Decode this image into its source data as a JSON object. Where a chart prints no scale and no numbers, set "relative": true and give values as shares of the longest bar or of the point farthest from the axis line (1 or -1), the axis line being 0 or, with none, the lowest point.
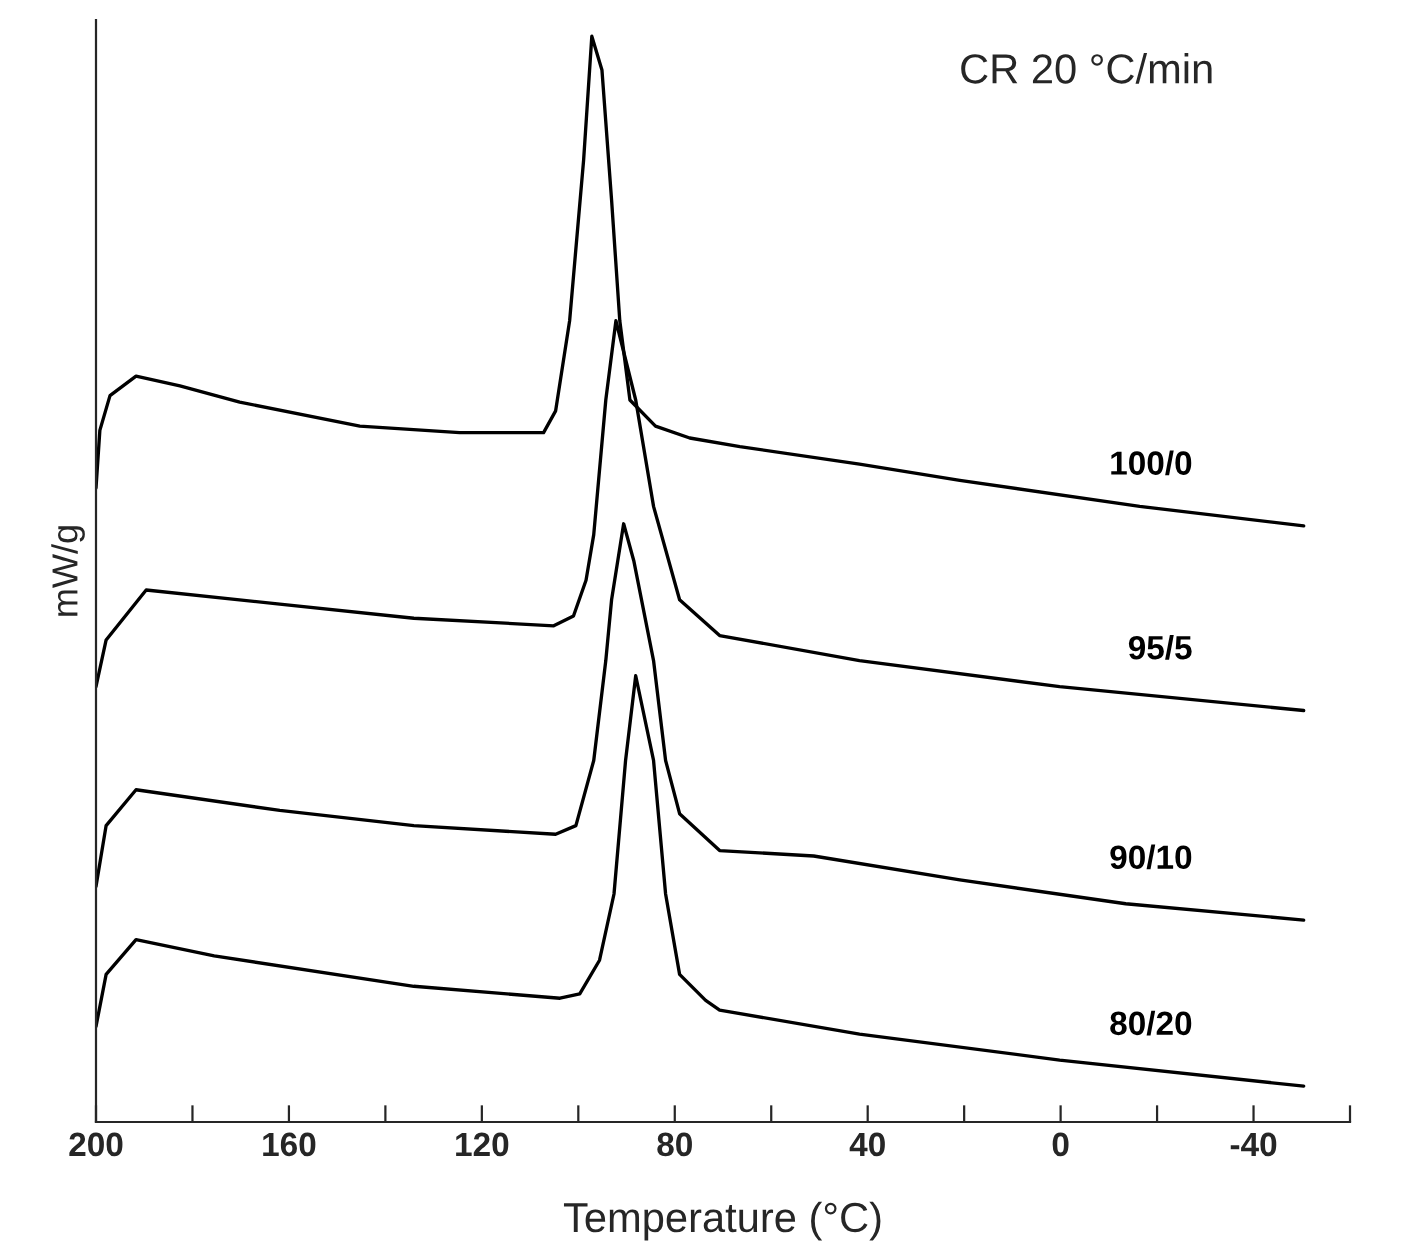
{
  "chart_data": {
    "type": "line",
    "relative": true,
    "xlabel": "Temperature (°C)",
    "ylabel": "mW/g",
    "annotations": [
      "CR 20 °C/min"
    ],
    "xlim": [
      200,
      -60
    ],
    "xticks": [
      200,
      {
        "value": 180,
        "label": null
      },
      160,
      {
        "value": 140,
        "label": null
      },
      120,
      {
        "value": 100,
        "label": null
      },
      80,
      {
        "value": 60,
        "label": null
      },
      40,
      {
        "value": 20,
        "label": null
      },
      0,
      {
        "value": -20,
        "label": null
      },
      -40,
      {
        "value": -60,
        "label": null
      }
    ],
    "grid": false,
    "legend": false,
    "marker": "none",
    "line_style": "solid",
    "tick_labels": "x",
    "series": [
      {
        "name": "100/0",
        "color": "#000000",
        "x": [
          200,
          199.2,
          197.1,
          191.7,
          182.6,
          170.2,
          145.3,
          124.6,
          107.2,
          104.7,
          101.8,
          98.9,
          97.2,
          95.1,
          93.1,
          91.4,
          89.3,
          84.0,
          76.9,
          66.5,
          41.7,
          20.9,
          -16.4,
          -50.4
        ],
        "values": [
          0.584,
          0.637,
          0.669,
          0.687,
          0.678,
          0.663,
          0.641,
          0.635,
          0.635,
          0.655,
          0.738,
          0.886,
          1.0,
          0.969,
          0.849,
          0.738,
          0.665,
          0.641,
          0.63,
          0.622,
          0.606,
          0.591,
          0.567,
          0.549
        ]
      },
      {
        "name": "95/5",
        "color": "#000000",
        "x": [
          200,
          197.9,
          189.6,
          161.9,
          134.1,
          105.1,
          101.0,
          98.4,
          96.8,
          94.3,
          92.2,
          88.1,
          84.4,
          79.0,
          70.7,
          41.7,
          0.2,
          -50.4
        ],
        "values": [
          0.401,
          0.444,
          0.49,
          0.477,
          0.464,
          0.457,
          0.466,
          0.499,
          0.541,
          0.665,
          0.738,
          0.665,
          0.567,
          0.481,
          0.448,
          0.425,
          0.401,
          0.379
        ]
      },
      {
        "name": "90/10",
        "color": "#000000",
        "x": [
          200,
          197.9,
          191.7,
          161.9,
          134.1,
          104.7,
          100.5,
          96.8,
          94.3,
          93.1,
          90.6,
          88.5,
          84.4,
          81.9,
          79.0,
          70.7,
          51.2,
          20.9,
          -13.5,
          -50.4
        ],
        "values": [
          0.217,
          0.273,
          0.306,
          0.287,
          0.273,
          0.265,
          0.273,
          0.333,
          0.425,
          0.481,
          0.551,
          0.517,
          0.425,
          0.333,
          0.284,
          0.25,
          0.245,
          0.223,
          0.201,
          0.186
        ]
      },
      {
        "name": "80/20",
        "color": "#000000",
        "x": [
          200,
          197.9,
          191.7,
          175.5,
          134.1,
          103.8,
          99.7,
          95.6,
          92.6,
          90.2,
          88.1,
          84.4,
          81.9,
          79.0,
          73.6,
          70.7,
          41.7,
          0.2,
          -50.4
        ],
        "values": [
          0.088,
          0.136,
          0.168,
          0.153,
          0.125,
          0.114,
          0.118,
          0.149,
          0.21,
          0.333,
          0.411,
          0.333,
          0.21,
          0.136,
          0.112,
          0.103,
          0.081,
          0.057,
          0.033
        ]
      }
    ]
  }
}
